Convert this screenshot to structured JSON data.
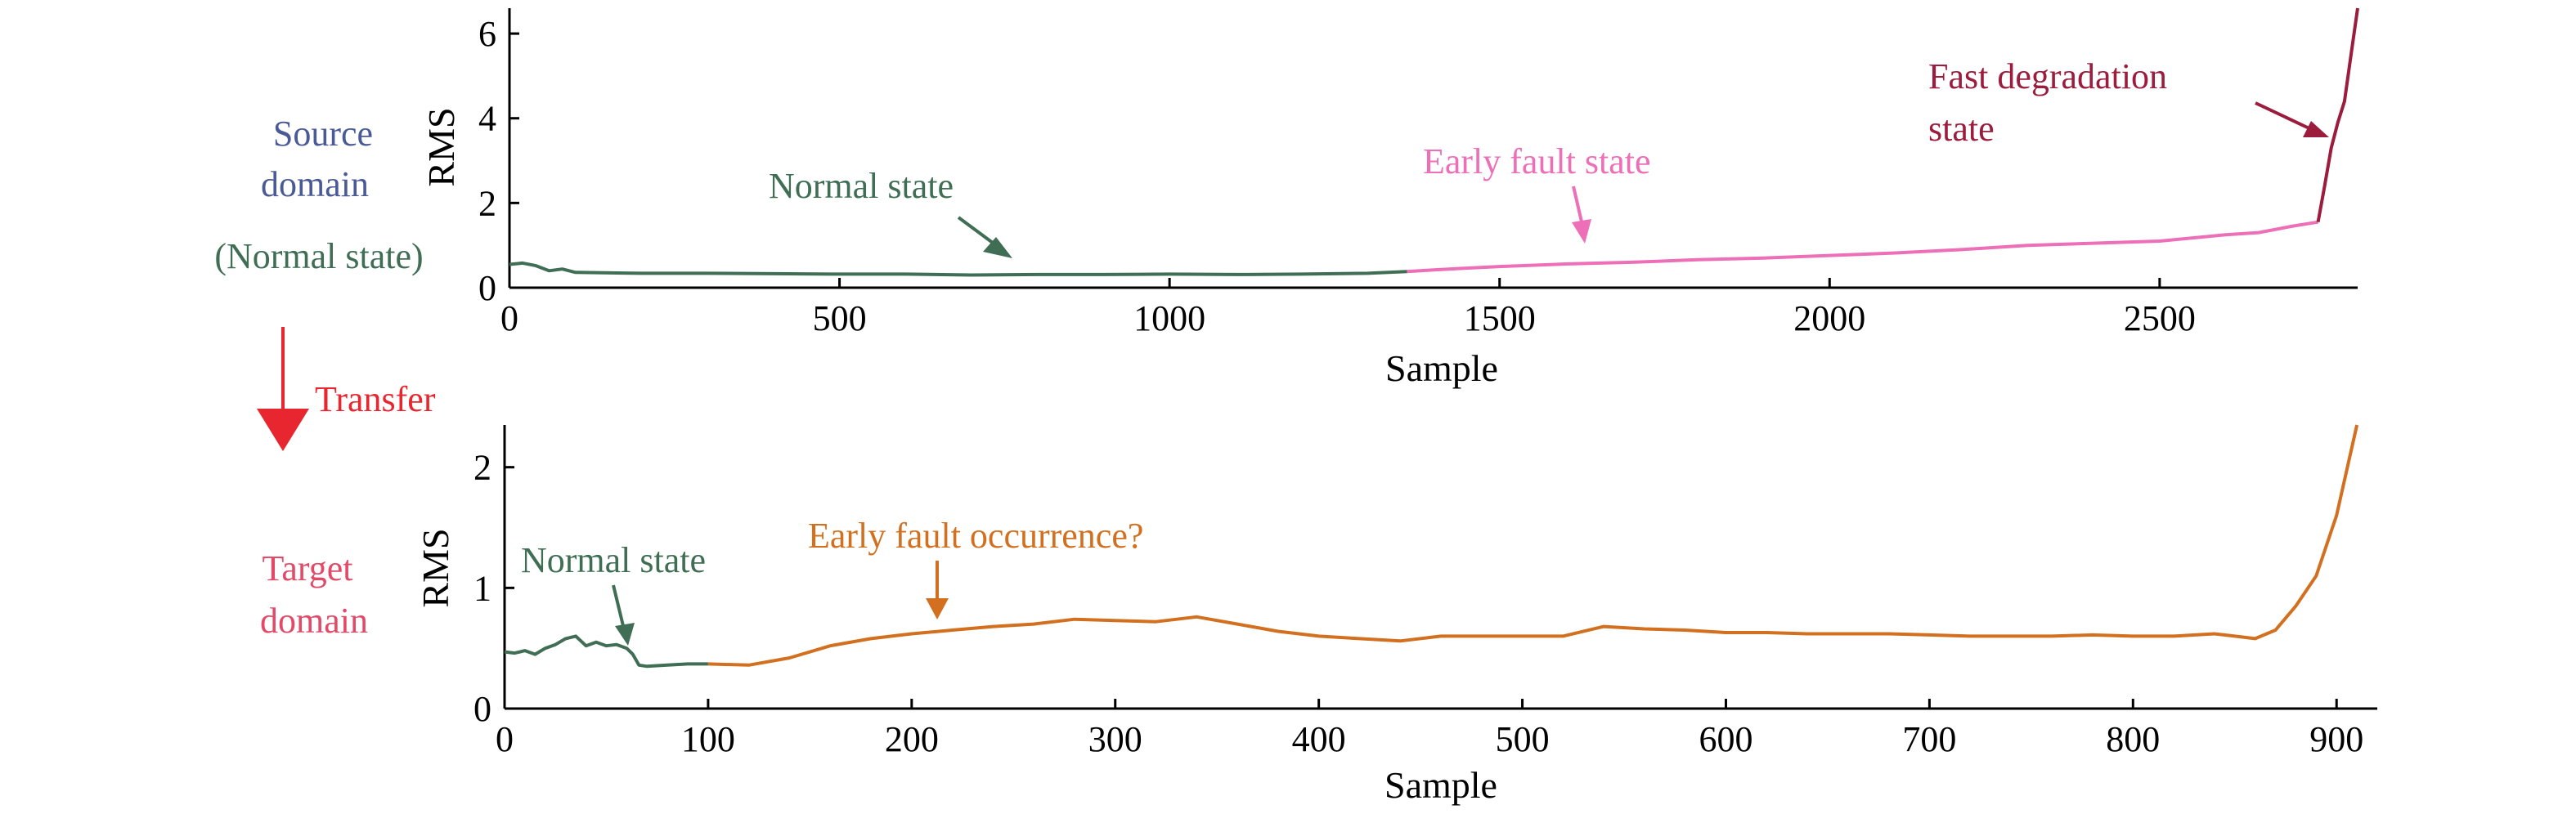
{
  "colors": {
    "source": "#4a5a96",
    "normal": "#3f6e55",
    "early": "#ec6fb8",
    "fast": "#9b1c3c",
    "transfer": "#e8262f",
    "target": "#e24a68",
    "target_fault": "#d2701f"
  },
  "side": {
    "source_line1": "Source",
    "source_line2": "domain",
    "source_line3": "(Normal state)",
    "transfer": "Transfer",
    "target_line1": "Target",
    "target_line2": "domain"
  },
  "chart_data": [
    {
      "type": "line",
      "xlabel": "Sample",
      "ylabel": "RMS",
      "xlim": [
        0,
        2800
      ],
      "ylim": [
        0,
        6.6
      ],
      "xticks": [
        0,
        500,
        1000,
        1500,
        2000,
        2500
      ],
      "yticks": [
        0,
        2,
        4,
        6
      ],
      "series": [
        {
          "segment": "normal",
          "color_key": "normal",
          "x": [
            0,
            20,
            40,
            60,
            80,
            100,
            200,
            300,
            400,
            500,
            600,
            700,
            800,
            900,
            1000,
            1100,
            1200,
            1300,
            1360
          ],
          "y": [
            0.55,
            0.58,
            0.52,
            0.4,
            0.44,
            0.36,
            0.34,
            0.34,
            0.33,
            0.32,
            0.32,
            0.3,
            0.31,
            0.31,
            0.32,
            0.31,
            0.32,
            0.34,
            0.38
          ]
        },
        {
          "segment": "early",
          "color_key": "early",
          "x": [
            1360,
            1400,
            1500,
            1600,
            1700,
            1800,
            1900,
            2000,
            2100,
            2200,
            2300,
            2400,
            2500,
            2600,
            2650,
            2700,
            2740
          ],
          "y": [
            0.38,
            0.42,
            0.5,
            0.56,
            0.6,
            0.66,
            0.7,
            0.76,
            0.82,
            0.9,
            1.0,
            1.05,
            1.1,
            1.25,
            1.3,
            1.45,
            1.55
          ]
        },
        {
          "segment": "fast",
          "color_key": "fast",
          "x": [
            2740,
            2750,
            2760,
            2770,
            2780,
            2790,
            2800
          ],
          "y": [
            1.55,
            2.4,
            3.3,
            3.9,
            4.4,
            5.5,
            6.6
          ]
        }
      ],
      "annotations": [
        {
          "text": "Normal state",
          "color_key": "normal",
          "x": 750,
          "y": 0.35
        },
        {
          "text": "Early fault state",
          "color_key": "early",
          "x": 1620,
          "y": 1.0
        },
        {
          "text": "Fast degradation",
          "color_key": "fast",
          "x": 2770,
          "y": 3.5
        },
        {
          "text": "state",
          "color_key": "fast"
        }
      ]
    },
    {
      "type": "line",
      "xlabel": "Sample",
      "ylabel": "RMS",
      "xlim": [
        0,
        920
      ],
      "ylim": [
        0,
        2.35
      ],
      "xticks": [
        0,
        100,
        200,
        300,
        400,
        500,
        600,
        700,
        800,
        900
      ],
      "yticks": [
        0,
        1,
        2
      ],
      "series": [
        {
          "segment": "normal",
          "color_key": "normal",
          "x": [
            0,
            5,
            10,
            15,
            20,
            25,
            30,
            35,
            40,
            45,
            50,
            55,
            60,
            63,
            66,
            70,
            80,
            90,
            100
          ],
          "y": [
            0.47,
            0.46,
            0.48,
            0.45,
            0.5,
            0.53,
            0.58,
            0.6,
            0.52,
            0.55,
            0.52,
            0.53,
            0.5,
            0.45,
            0.36,
            0.35,
            0.36,
            0.37,
            0.37
          ]
        },
        {
          "segment": "fault",
          "color_key": "target_fault",
          "x": [
            100,
            120,
            140,
            160,
            180,
            200,
            220,
            240,
            260,
            280,
            300,
            320,
            340,
            360,
            380,
            400,
            420,
            440,
            460,
            480,
            500,
            520,
            540,
            560,
            580,
            600,
            620,
            640,
            660,
            680,
            700,
            720,
            740,
            760,
            780,
            800,
            820,
            840,
            850,
            860,
            870,
            880,
            890,
            900,
            910
          ],
          "y": [
            0.37,
            0.36,
            0.42,
            0.52,
            0.58,
            0.62,
            0.65,
            0.68,
            0.7,
            0.74,
            0.73,
            0.72,
            0.76,
            0.7,
            0.64,
            0.6,
            0.58,
            0.56,
            0.6,
            0.6,
            0.6,
            0.6,
            0.68,
            0.66,
            0.65,
            0.63,
            0.63,
            0.62,
            0.62,
            0.62,
            0.61,
            0.6,
            0.6,
            0.6,
            0.61,
            0.6,
            0.6,
            0.62,
            0.6,
            0.58,
            0.65,
            0.85,
            1.1,
            1.6,
            2.35
          ]
        }
      ],
      "annotations": [
        {
          "text": "Normal state",
          "color_key": "normal",
          "x": 63,
          "y": 0.48
        },
        {
          "text": "Early fault occurrence?",
          "color_key": "target_fault",
          "x": 215,
          "y": 0.68
        }
      ]
    }
  ]
}
